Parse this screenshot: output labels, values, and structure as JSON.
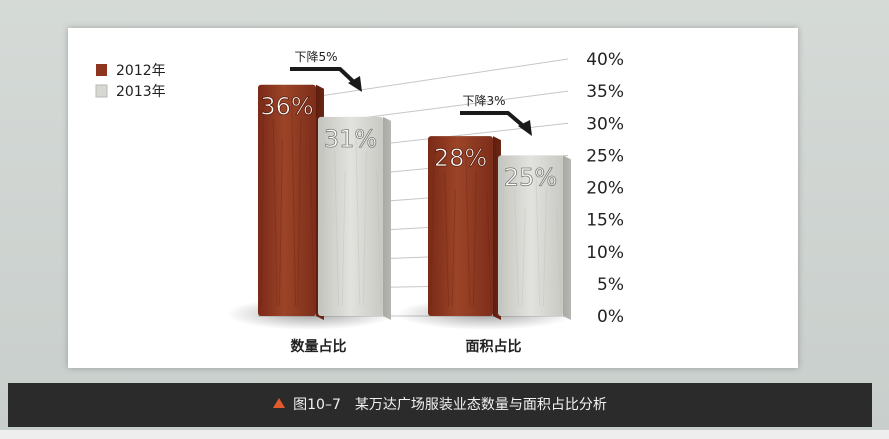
{
  "chart_data": {
    "type": "bar",
    "categories": [
      "数量占比",
      "面积占比"
    ],
    "series": [
      {
        "name": "2012年",
        "values": [
          36,
          28
        ],
        "labels": [
          "36%",
          "28%"
        ],
        "color": "#8e3520"
      },
      {
        "name": "2013年",
        "values": [
          31,
          25
        ],
        "labels": [
          "31%",
          "25%"
        ],
        "color": "#d7d7d3"
      }
    ],
    "ylim": [
      0,
      40
    ],
    "yticks": [
      "0%",
      "5%",
      "10%",
      "15%",
      "20%",
      "25%",
      "30%",
      "35%",
      "40%"
    ],
    "annotations": [
      {
        "category": "数量占比",
        "text": "下降5%"
      },
      {
        "category": "面积占比",
        "text": "下降3%"
      }
    ],
    "title": "",
    "xlabel": "",
    "ylabel": ""
  },
  "caption": {
    "figure_number": "图10–7",
    "title": "某万达广场服装业态数量与面积占比分析"
  }
}
